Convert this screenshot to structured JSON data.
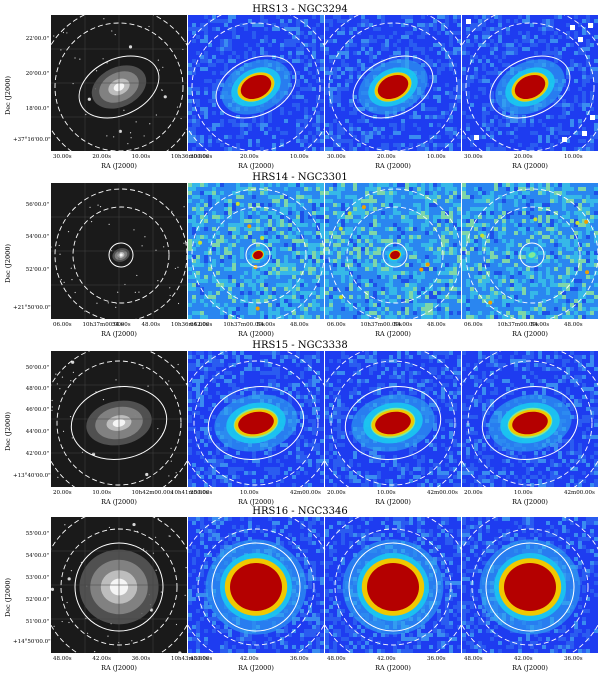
{
  "rows": [
    {
      "title": "HRS13 - NGC3294",
      "ylabel": "Dec (J2000)",
      "yticks": [
        "22'00.0\"",
        "20'00.0\"",
        "18'00.0\"",
        "+37°16'00.0\""
      ],
      "xticks": [
        [
          "30.00s",
          "20.00s",
          "10.00s",
          "10h36m00.00s"
        ],
        [
          "30.00s",
          "20.00s",
          "10.00s"
        ],
        [
          "30.00s",
          "20.00s",
          "10.00s"
        ],
        [
          "30.00s",
          "20.00s",
          "10.00s"
        ]
      ],
      "xlabel": "RA (J2000)",
      "maps": [
        "grayscale spiral galaxy",
        "blue heatmap",
        "blue heatmap",
        "blue heatmap"
      ]
    },
    {
      "title": "HRS14 - NGC3301",
      "ylabel": "Dec (J2000)",
      "yticks": [
        "56'00.0\"",
        "54'00.0\"",
        "52'00.0\"",
        "+21°50'00.0\""
      ],
      "xticks": [
        [
          "06.00s",
          "10h37m00.00s",
          "54.00s",
          "48.00s",
          "10h36m42.00s"
        ],
        [
          "06.00s",
          "10h37m00.00s",
          "54.00s",
          "48.00s"
        ],
        [
          "06.00s",
          "10h37m00.00s",
          "54.00s",
          "48.00s"
        ],
        [
          "06.00s",
          "10h37m00.00s",
          "54.00s",
          "48.00s"
        ]
      ],
      "xlabel": "RA (J2000)",
      "maps": [
        "grayscale lenticular galaxy",
        "noisy heatmap",
        "noisy heatmap",
        "noisy heatmap"
      ]
    },
    {
      "title": "HRS15 - NGC3338",
      "ylabel": "Dec (J2000)",
      "yticks": [
        "50'00.0\"",
        "48'00.0\"",
        "46'00.0\"",
        "44'00.0\"",
        "42'00.0\"",
        "+13°40'00.0\""
      ],
      "xticks": [
        [
          "20.00s",
          "10.00s",
          "10h42m00.00s",
          "10h41m50.00s"
        ],
        [
          "20.00s",
          "10.00s",
          "42m00.00s"
        ],
        [
          "20.00s",
          "10.00s",
          "42m00.00s"
        ],
        [
          "20.00s",
          "10.00s",
          "42m00.00s"
        ]
      ],
      "xlabel": "RA (J2000)",
      "maps": [
        "grayscale spiral galaxy",
        "blue heatmap",
        "blue heatmap",
        "blue heatmap"
      ]
    },
    {
      "title": "HRS16 - NGC3346",
      "ylabel": "Dec (J2000)",
      "yticks": [
        "55'00.0\"",
        "54'00.0\"",
        "53'00.0\"",
        "52'00.0\"",
        "51'00.0\"",
        "+14°50'00.0\""
      ],
      "xticks": [
        [
          "48.00s",
          "42.00s",
          "36.00s",
          "10h43m30.00s"
        ],
        [
          "48.00s",
          "42.00s",
          "36.00s"
        ],
        [
          "48.00s",
          "42.00s",
          "36.00s"
        ],
        [
          "48.00s",
          "42.00s",
          "36.00s"
        ]
      ],
      "xlabel": "RA (J2000)",
      "maps": [
        "grayscale face-on spiral",
        "blue heatmap",
        "blue heatmap",
        "blue heatmap"
      ]
    }
  ],
  "colors": {
    "heat_bg": "#1e3cf0",
    "heat_mid": "#19c8f0",
    "heat_hot": "#f0c800",
    "heat_core": "#b40000",
    "gray_bg": "#1a1a1a"
  }
}
